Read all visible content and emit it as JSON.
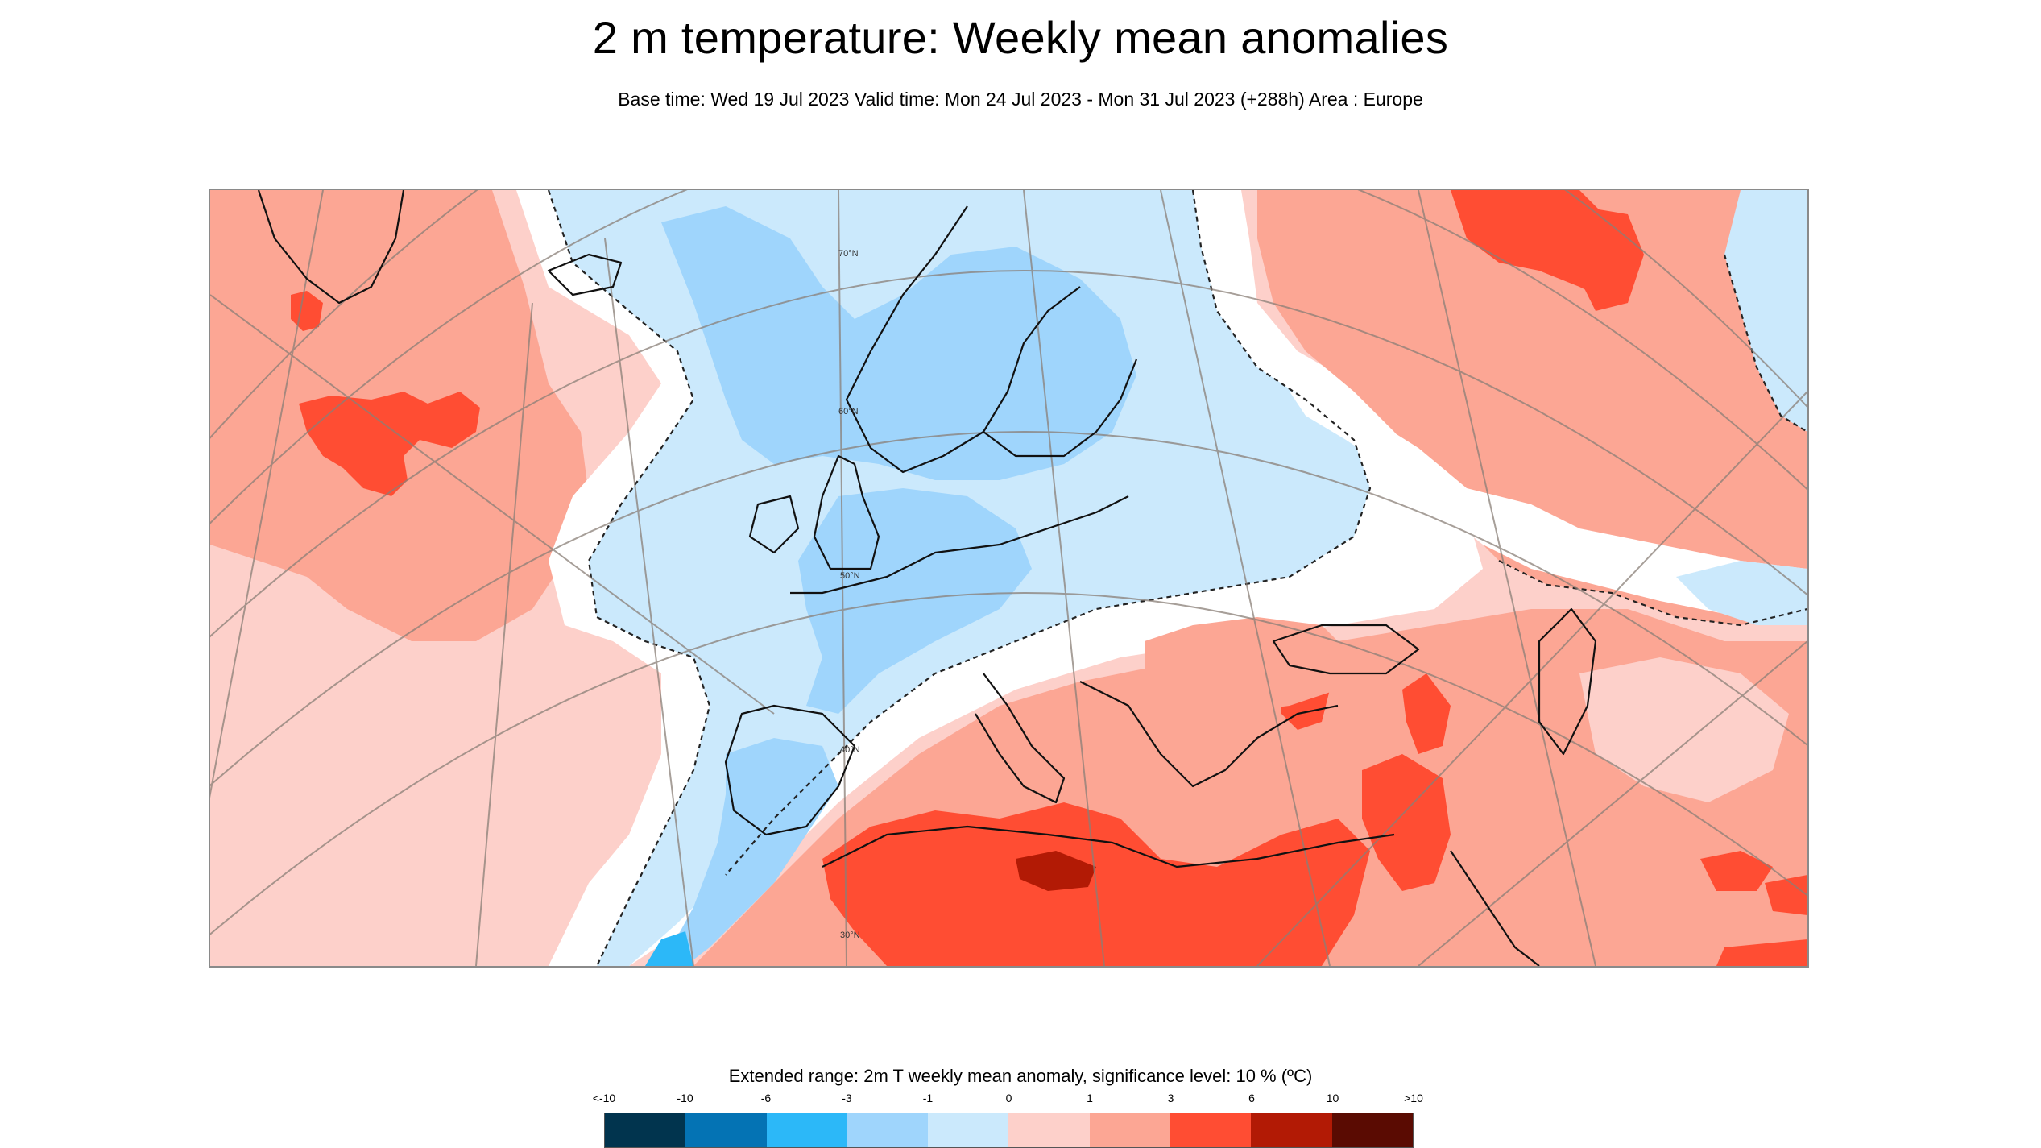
{
  "title": "2 m temperature: Weekly mean anomalies",
  "subtitle": "Base time: Wed 19 Jul 2023 Valid time: Mon 24 Jul 2023 - Mon 31 Jul 2023 (+288h) Area : Europe",
  "map": {
    "latitude_labels": [
      "70°N",
      "60°N",
      "50°N",
      "40°N",
      "30°N"
    ],
    "colors": {
      "strong_warm": "#ff4d33",
      "warm": "#fca694",
      "slight_warm": "#fdd0ca",
      "neutral": "#ffffff",
      "slight_cool": "#cbe9fc",
      "cool": "#9fd5fc",
      "very_warm": "#b21a05"
    }
  },
  "legend": {
    "title": "Extended range: 2m T weekly mean anomaly, significance level: 10 % (ºC)",
    "ticks": [
      "<-10",
      "-10",
      "-6",
      "-3",
      "-1",
      "0",
      "1",
      "3",
      "6",
      "10",
      ">10"
    ],
    "colors": [
      "#01344e",
      "#0473b4",
      "#2cb8f8",
      "#9fd5fc",
      "#cbe9fc",
      "#fdd0ca",
      "#fca694",
      "#ff4d33",
      "#b21a05",
      "#5a0b02"
    ]
  }
}
